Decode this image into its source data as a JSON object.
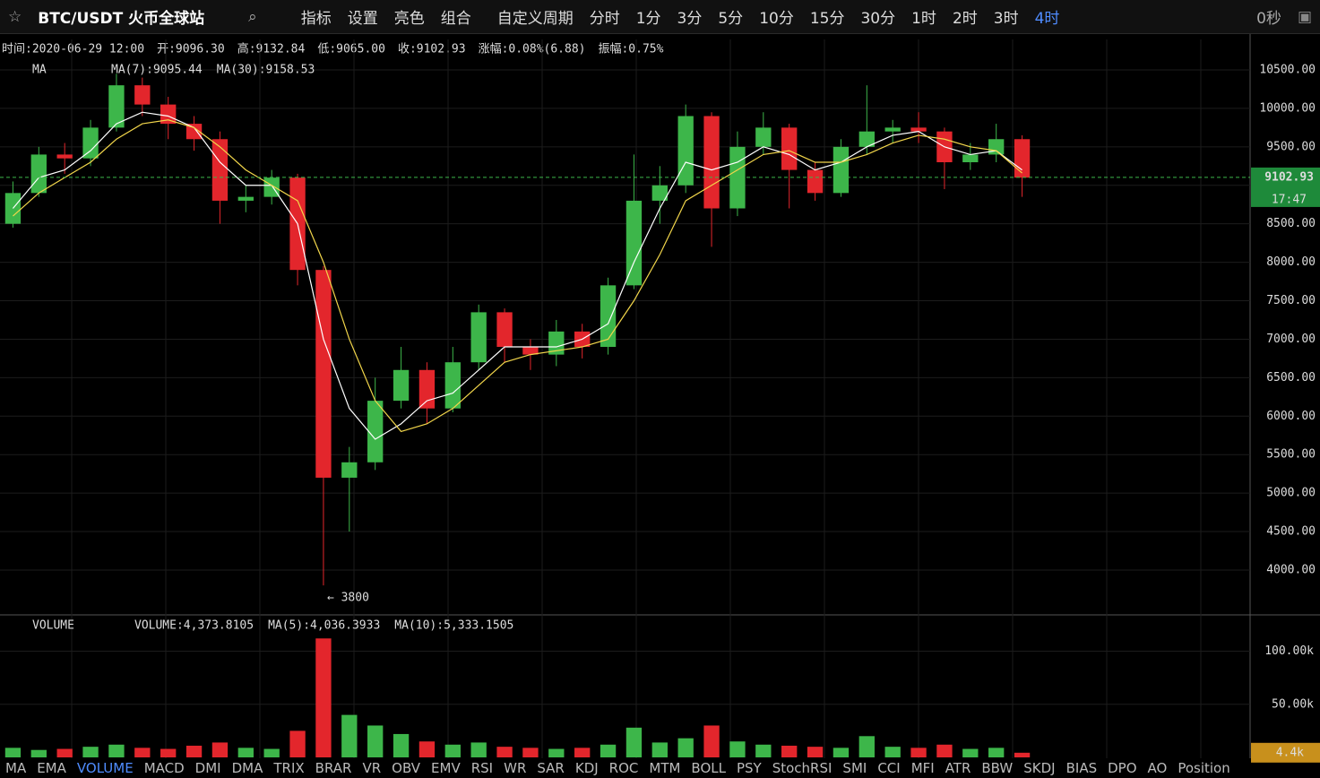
{
  "toolbar": {
    "symbol": "BTC/USDT 火币全球站",
    "menus": [
      "指标",
      "设置",
      "亮色",
      "组合"
    ],
    "custom_period": "自定义周期",
    "periods": [
      "分时",
      "1分",
      "3分",
      "5分",
      "10分",
      "15分",
      "30分",
      "1时",
      "2时",
      "3时",
      "4时"
    ],
    "active_period_index": 10,
    "countdown": "0秒"
  },
  "info": {
    "time": "时间:2020-06-29 12:00",
    "open": "开:9096.30",
    "high": "高:9132.84",
    "low": "低:9065.00",
    "close": "收:9102.93",
    "change_label": "涨幅:",
    "change": "0.08%(6.88)",
    "amplitude": "振幅:0.75%"
  },
  "chart_data": {
    "type": "candlestick",
    "legend_title": "MA",
    "open": [
      8500,
      8900,
      9400,
      9350,
      9750,
      10300,
      10050,
      9800,
      9600,
      8800,
      8850,
      9100,
      7900,
      5200,
      5400,
      6200,
      6600,
      6100,
      6700,
      7350,
      6900,
      6800,
      7100,
      6900,
      7700,
      8800,
      9000,
      9900,
      8700,
      9500,
      9750,
      9200,
      8900,
      9500,
      9700,
      9750,
      9700,
      9300,
      9400,
      9600
    ],
    "high": [
      9050,
      9500,
      9550,
      9850,
      10450,
      10400,
      10150,
      9900,
      9700,
      9000,
      9200,
      9150,
      7950,
      5600,
      6500,
      6900,
      6700,
      6900,
      7450,
      7400,
      7000,
      7250,
      7200,
      7800,
      9400,
      9250,
      10050,
      9950,
      9700,
      9950,
      9800,
      9300,
      9600,
      10300,
      9850,
      9950,
      9750,
      9550,
      9800,
      9650
    ],
    "low": [
      8450,
      8850,
      9150,
      9250,
      9700,
      9900,
      9600,
      9450,
      8500,
      8650,
      8750,
      7700,
      3800,
      4500,
      5300,
      6100,
      5900,
      6050,
      6600,
      6700,
      6600,
      6650,
      6750,
      6800,
      7650,
      8500,
      8900,
      8200,
      8600,
      9400,
      8700,
      8800,
      8850,
      9400,
      9550,
      9550,
      8950,
      9200,
      9300,
      8850
    ],
    "close": [
      8900,
      9400,
      9350,
      9750,
      10300,
      10050,
      9800,
      9600,
      8800,
      8850,
      9100,
      7900,
      5200,
      5400,
      6200,
      6600,
      6100,
      6700,
      7350,
      6900,
      6800,
      7100,
      6900,
      7700,
      8800,
      9000,
      9900,
      8700,
      9500,
      9750,
      9200,
      8900,
      9500,
      9700,
      9750,
      9700,
      9300,
      9400,
      9600,
      9100
    ],
    "up_color": "#3db64a",
    "down_color": "#e3262c",
    "ma": [
      {
        "name": "MA(7):9095.44",
        "color": "#ffffff",
        "values": [
          8700,
          9100,
          9200,
          9450,
          9800,
          9950,
          9900,
          9750,
          9300,
          9000,
          9000,
          8500,
          7000,
          6100,
          5700,
          5900,
          6200,
          6300,
          6600,
          6900,
          6900,
          6900,
          7000,
          7200,
          8000,
          8700,
          9300,
          9200,
          9300,
          9500,
          9400,
          9200,
          9300,
          9500,
          9650,
          9700,
          9500,
          9400,
          9450,
          9200
        ]
      },
      {
        "name": "MA(30):9158.53",
        "color": "#f2d64b",
        "values": [
          8600,
          8900,
          9100,
          9300,
          9600,
          9800,
          9850,
          9750,
          9500,
          9200,
          9000,
          8800,
          8000,
          7000,
          6200,
          5800,
          5900,
          6100,
          6400,
          6700,
          6800,
          6850,
          6900,
          7000,
          7500,
          8100,
          8800,
          9000,
          9200,
          9400,
          9450,
          9300,
          9300,
          9400,
          9550,
          9650,
          9600,
          9500,
          9450,
          9160
        ]
      }
    ],
    "ylim": [
      3487,
      10896
    ],
    "yticks": [
      {
        "value": 10500,
        "label": "10500.00"
      },
      {
        "value": 10000,
        "label": "10000.00"
      },
      {
        "value": 9500,
        "label": "9500.00"
      },
      {
        "value": 9000,
        "label": "9000.00"
      },
      {
        "value": 8500,
        "label": "8500.00"
      },
      {
        "value": 8000,
        "label": "8000.00"
      },
      {
        "value": 7500,
        "label": "7500.00"
      },
      {
        "value": 7000,
        "label": "7000.00"
      },
      {
        "value": 6500,
        "label": "6500.00"
      },
      {
        "value": 6000,
        "label": "6000.00"
      },
      {
        "value": 5500,
        "label": "5500.00"
      },
      {
        "value": 5000,
        "label": "5000.00"
      },
      {
        "value": 4500,
        "label": "4500.00"
      },
      {
        "value": 4000,
        "label": "4000.00"
      }
    ],
    "last_price": {
      "value": 9102.93,
      "label": "9102.93"
    },
    "bar_countdown": "17:47",
    "low_annotation": {
      "value": 3800,
      "label": "← 3800",
      "index": 12
    },
    "volume": {
      "legend_title": "VOLUME",
      "legend": [
        "VOLUME:4,373.8105",
        "MA(5):4,036.3933",
        "MA(10):5,333.1505"
      ],
      "values": [
        9000,
        7000,
        8000,
        10000,
        12000,
        9000,
        8000,
        11000,
        14000,
        9000,
        8000,
        25000,
        112000,
        40000,
        30000,
        22000,
        15000,
        12000,
        14000,
        10000,
        9000,
        8000,
        9000,
        12000,
        28000,
        14000,
        18000,
        30000,
        15000,
        12000,
        11000,
        10000,
        9000,
        20000,
        10000,
        9000,
        12000,
        8000,
        9000,
        4373.8105
      ],
      "ylim": [
        0,
        132500
      ],
      "yticks": [
        {
          "value": 100000,
          "label": "100.00k"
        },
        {
          "value": 50000,
          "label": "50.00k"
        }
      ],
      "last": {
        "value": 4400,
        "label": "4.4k"
      }
    }
  },
  "indicator_tabs": [
    "MA",
    "EMA",
    "VOLUME",
    "MACD",
    "DMI",
    "DMA",
    "TRIX",
    "BRAR",
    "VR",
    "OBV",
    "EMV",
    "RSI",
    "WR",
    "SAR",
    "KDJ",
    "ROC",
    "MTM",
    "BOLL",
    "PSY",
    "StochRSI",
    "SMI",
    "CCI",
    "MFI",
    "ATR",
    "BBW",
    "SKDJ",
    "BIAS",
    "DPO",
    "AO",
    "Position"
  ],
  "active_tab_index": 2
}
